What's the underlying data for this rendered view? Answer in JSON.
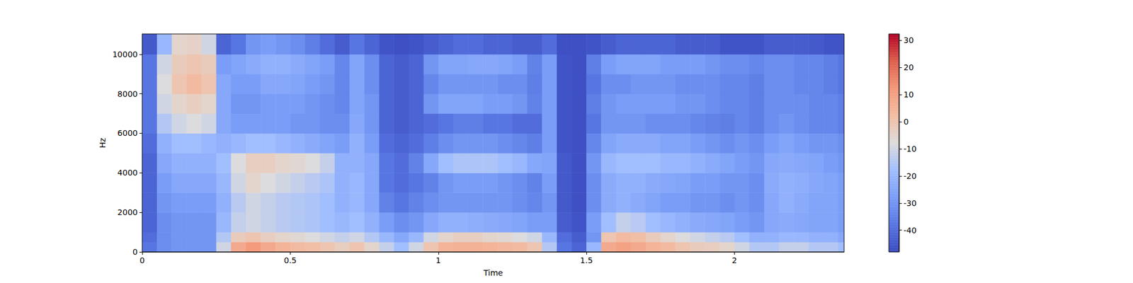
{
  "chart_data": {
    "type": "heatmap",
    "x_label": "Time",
    "y_label": "Hz",
    "xlim": [
      0,
      2.37
    ],
    "xticks": [
      0,
      0.5,
      1,
      1.5,
      2
    ],
    "ylim": [
      0,
      11025
    ],
    "yticks": [
      0,
      2000,
      4000,
      6000,
      8000,
      10000
    ],
    "grid": false,
    "x_edges": [
      0,
      0.05,
      0.1,
      0.15,
      0.2,
      0.25,
      0.3,
      0.35,
      0.4,
      0.45,
      0.5,
      0.55,
      0.6,
      0.65,
      0.7,
      0.75,
      0.8,
      0.85,
      0.9,
      0.95,
      1,
      1.05,
      1.1,
      1.15,
      1.2,
      1.25,
      1.3,
      1.35,
      1.4,
      1.45,
      1.5,
      1.55,
      1.6,
      1.65,
      1.7,
      1.75,
      1.8,
      1.85,
      1.9,
      1.95,
      2,
      2.05,
      2.1,
      2.15,
      2.2,
      2.25,
      2.3,
      2.35,
      2.4
    ],
    "y_edges": [
      0,
      500,
      1000,
      2000,
      3000,
      4000,
      5000,
      6000,
      7000,
      8000,
      9000,
      10000,
      11025
    ],
    "cells": [
      [
        -38,
        -32,
        -30,
        -30,
        -30,
        -10,
        8,
        12,
        8,
        5,
        3,
        2,
        0,
        -3,
        0,
        -5,
        -12,
        -18,
        -10,
        0,
        5,
        6,
        6,
        5,
        4,
        3,
        0,
        -15,
        -38,
        -42,
        -20,
        8,
        10,
        8,
        5,
        3,
        0,
        -2,
        -3,
        -5,
        -10,
        -15,
        -15,
        -12,
        -12,
        -15,
        -15,
        -18
      ],
      [
        -40,
        -32,
        -30,
        -30,
        -30,
        -15,
        -2,
        0,
        -3,
        -5,
        -6,
        -8,
        -10,
        -12,
        -10,
        -15,
        -20,
        -25,
        -20,
        -10,
        -5,
        -3,
        -3,
        -5,
        -6,
        -8,
        -10,
        -20,
        -40,
        -44,
        -30,
        0,
        3,
        2,
        -2,
        -5,
        -8,
        -10,
        -12,
        -14,
        -18,
        -22,
        -22,
        -20,
        -20,
        -22,
        -22,
        -25
      ],
      [
        -42,
        -32,
        -30,
        -30,
        -30,
        -20,
        -12,
        -10,
        -12,
        -14,
        -15,
        -16,
        -18,
        -20,
        -18,
        -22,
        -28,
        -32,
        -30,
        -25,
        -22,
        -22,
        -23,
        -24,
        -25,
        -26,
        -28,
        -28,
        -44,
        -46,
        -28,
        -18,
        -12,
        -14,
        -18,
        -20,
        -22,
        -24,
        -25,
        -26,
        -28,
        -30,
        -25,
        -24,
        -25,
        -26,
        -26,
        -28
      ],
      [
        -42,
        -30,
        -28,
        -28,
        -28,
        -22,
        -14,
        -10,
        -12,
        -14,
        -15,
        -16,
        -18,
        -22,
        -20,
        -25,
        -35,
        -38,
        -35,
        -32,
        -30,
        -30,
        -30,
        -30,
        -30,
        -32,
        -34,
        -30,
        -45,
        -47,
        -32,
        -24,
        -22,
        -24,
        -26,
        -28,
        -28,
        -30,
        -30,
        -32,
        -30,
        -32,
        -25,
        -22,
        -24,
        -26,
        -26,
        -28
      ],
      [
        -42,
        -28,
        -25,
        -25,
        -25,
        -20,
        -10,
        -5,
        -8,
        -10,
        -12,
        -14,
        -16,
        -22,
        -20,
        -25,
        -38,
        -40,
        -38,
        -35,
        -30,
        -28,
        -28,
        -28,
        -30,
        -32,
        -35,
        -28,
        -45,
        -47,
        -32,
        -24,
        -22,
        -22,
        -24,
        -25,
        -26,
        -28,
        -28,
        -30,
        -30,
        -32,
        -24,
        -22,
        -23,
        -25,
        -26,
        -28
      ],
      [
        -42,
        -25,
        -22,
        -22,
        -22,
        -18,
        -8,
        -3,
        -3,
        -5,
        -6,
        -8,
        -12,
        -22,
        -22,
        -25,
        -38,
        -40,
        -35,
        -25,
        -18,
        -16,
        -16,
        -16,
        -18,
        -20,
        -25,
        -26,
        -45,
        -47,
        -30,
        -20,
        -18,
        -18,
        -18,
        -20,
        -20,
        -22,
        -24,
        -26,
        -28,
        -30,
        -25,
        -24,
        -25,
        -26,
        -28,
        -30
      ],
      [
        -40,
        -22,
        -18,
        -18,
        -20,
        -22,
        -20,
        -18,
        -18,
        -20,
        -22,
        -24,
        -26,
        -28,
        -22,
        -28,
        -40,
        -42,
        -40,
        -36,
        -32,
        -30,
        -30,
        -30,
        -32,
        -34,
        -36,
        -28,
        -46,
        -47,
        -34,
        -26,
        -24,
        -24,
        -24,
        -26,
        -26,
        -28,
        -30,
        -32,
        -30,
        -32,
        -28,
        -26,
        -28,
        -30,
        -30,
        -32
      ],
      [
        -38,
        -15,
        -10,
        -8,
        -10,
        -25,
        -28,
        -28,
        -28,
        -28,
        -30,
        -30,
        -32,
        -32,
        -25,
        -30,
        -42,
        -44,
        -42,
        -40,
        -38,
        -36,
        -36,
        -38,
        -38,
        -40,
        -40,
        -28,
        -46,
        -47,
        -38,
        -30,
        -30,
        -30,
        -32,
        -32,
        -32,
        -34,
        -35,
        -36,
        -34,
        -36,
        -32,
        -30,
        -32,
        -34,
        -34,
        -36
      ],
      [
        -38,
        -10,
        -5,
        -3,
        -5,
        -25,
        -30,
        -30,
        -28,
        -28,
        -28,
        -30,
        -32,
        -34,
        -26,
        -30,
        -42,
        -44,
        -42,
        -30,
        -26,
        -26,
        -26,
        -28,
        -28,
        -30,
        -35,
        -28,
        -46,
        -47,
        -36,
        -30,
        -28,
        -28,
        -28,
        -28,
        -30,
        -30,
        -32,
        -34,
        -34,
        -36,
        -32,
        -32,
        -32,
        -34,
        -34,
        -36
      ],
      [
        -38,
        -8,
        0,
        3,
        0,
        -25,
        -28,
        -28,
        -25,
        -25,
        -26,
        -28,
        -30,
        -34,
        -26,
        -32,
        -42,
        -44,
        -42,
        -34,
        -30,
        -30,
        -30,
        -30,
        -32,
        -32,
        -36,
        -28,
        -46,
        -47,
        -38,
        -32,
        -32,
        -30,
        -30,
        -30,
        -32,
        -32,
        -32,
        -34,
        -34,
        -36,
        -32,
        -32,
        -34,
        -34,
        -36,
        -38
      ],
      [
        -38,
        -10,
        -2,
        0,
        -2,
        -28,
        -26,
        -24,
        -22,
        -22,
        -24,
        -26,
        -28,
        -34,
        -26,
        -32,
        -42,
        -44,
        -42,
        -30,
        -26,
        -26,
        -25,
        -25,
        -26,
        -28,
        -35,
        -28,
        -46,
        -47,
        -36,
        -28,
        -26,
        -26,
        -26,
        -28,
        -28,
        -28,
        -30,
        -32,
        -32,
        -34,
        -32,
        -32,
        -34,
        -34,
        -36,
        -38
      ],
      [
        -45,
        -20,
        -5,
        -4,
        -10,
        -42,
        -38,
        -30,
        -28,
        -30,
        -32,
        -36,
        -40,
        -44,
        -38,
        -42,
        -46,
        -47,
        -46,
        -44,
        -42,
        -40,
        -40,
        -42,
        -42,
        -44,
        -44,
        -40,
        -47,
        -47,
        -46,
        -44,
        -42,
        -42,
        -42,
        -42,
        -44,
        -44,
        -44,
        -46,
        -46,
        -46,
        -44,
        -44,
        -44,
        -45,
        -46,
        -46
      ]
    ],
    "colorbar_lim": [
      -48,
      32.4
    ],
    "colorbar_ticks": [
      -40,
      -30,
      -20,
      -10,
      0,
      10,
      20,
      30
    ]
  }
}
